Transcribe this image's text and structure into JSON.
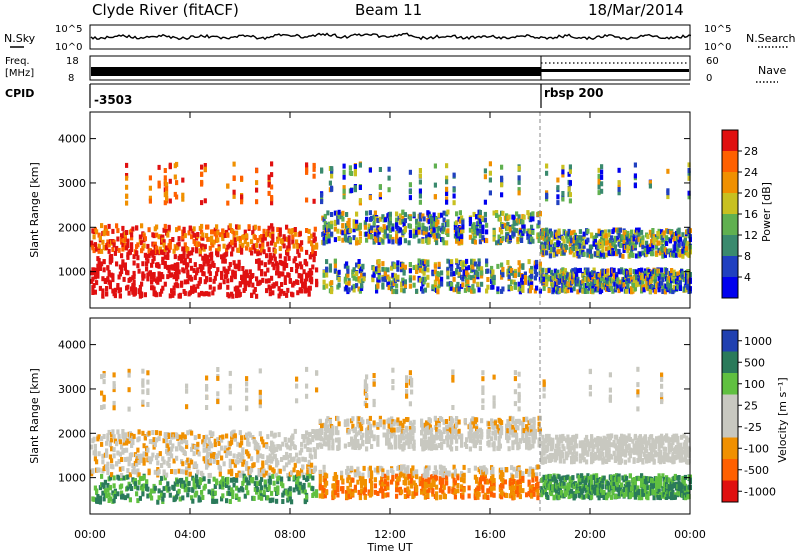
{
  "header": {
    "station": "Clyde River (fitACF)",
    "beam": "Beam 11",
    "date": "18/Mar/2014"
  },
  "top_panels": {
    "nsky_label": "N.Sky",
    "nsky_top": "10^5",
    "nsky_bottom": "10^0",
    "nsearch_label": "N.Search",
    "freq_label_1": "Freq.",
    "freq_label_2": "[MHz]",
    "freq_top": "18",
    "freq_bottom": "8",
    "nave_top": "60",
    "nave_bottom": "0",
    "nave_label": "Nave",
    "cpid_label": "CPID",
    "cpid_1": "-3503",
    "cpid_2": "rbsp 200"
  },
  "chart_data": [
    {
      "type": "heatmap",
      "panel": "power",
      "ylabel": "Slant Range [km]",
      "xlabel": "",
      "x_ticks": [
        "00:00",
        "04:00",
        "08:00",
        "12:00",
        "16:00",
        "20:00",
        "00:00"
      ],
      "y_ticks": [
        1000,
        2000,
        3000,
        4000
      ],
      "xlim": [
        0,
        24
      ],
      "ylim": [
        180,
        4600
      ],
      "colorbar_label": "Power [dB]",
      "colorbar_ticks": [
        4,
        8,
        12,
        16,
        20,
        24,
        28
      ],
      "colors": [
        "#0000ee",
        "#2040c0",
        "#3a8a6e",
        "#60b050",
        "#c8c020",
        "#f09000",
        "#ff6000",
        "#e01010"
      ],
      "event_marker_hour": 18
    },
    {
      "type": "heatmap",
      "panel": "velocity",
      "ylabel": "Slant Range [km]",
      "xlabel": "Time UT",
      "x_ticks": [
        "00:00",
        "04:00",
        "08:00",
        "12:00",
        "16:00",
        "20:00",
        "00:00"
      ],
      "y_ticks": [
        1000,
        2000,
        3000,
        4000
      ],
      "xlim": [
        0,
        24
      ],
      "ylim": [
        180,
        4600
      ],
      "colorbar_label": "Velocity [m s⁻¹]",
      "colorbar_ticks": [
        "1000",
        "500",
        "100",
        "25",
        "-25",
        "-100",
        "-500",
        "-1000"
      ],
      "colors": [
        "#2040b0",
        "#2a7a5a",
        "#60c040",
        "#c8c8c0",
        "#c8c8c0",
        "#f09000",
        "#ff6000",
        "#e01010"
      ],
      "event_marker_hour": 18
    }
  ]
}
